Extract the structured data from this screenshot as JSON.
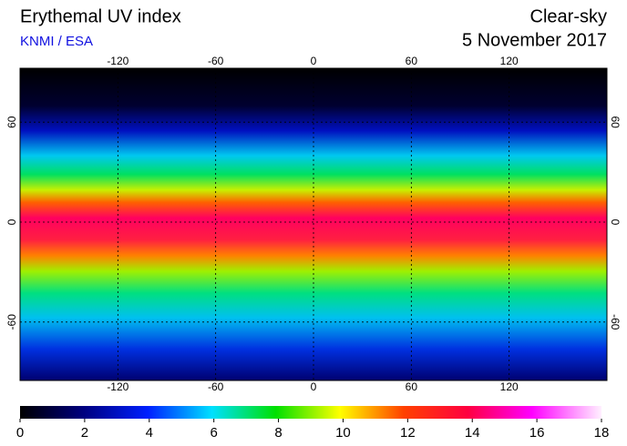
{
  "header": {
    "title": "Erythemal UV index",
    "source": "KNMI / ESA",
    "scene": "Clear-sky",
    "date": "5 November 2017"
  },
  "map": {
    "lon_ticks": [
      -120,
      -60,
      0,
      60,
      120
    ],
    "lat_ticks": [
      60,
      0,
      -60
    ]
  },
  "colorbar": {
    "ticks": [
      0,
      2,
      4,
      6,
      8,
      10,
      12,
      14,
      16,
      18
    ]
  }
}
